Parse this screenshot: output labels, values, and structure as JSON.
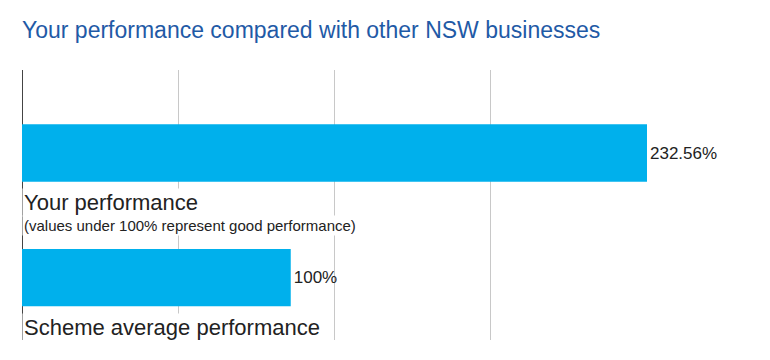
{
  "chart_data": {
    "type": "bar",
    "orientation": "horizontal",
    "title": "Your performance compared with other NSW businesses",
    "categories": [
      "Your performance",
      "Scheme average performance"
    ],
    "values": [
      232.56,
      100
    ],
    "value_labels": [
      "232.56%",
      "100%"
    ],
    "data_labels": true,
    "color": "#00b0ec",
    "xlim": [
      0,
      232.56
    ],
    "xticks": [
      0,
      58.14,
      116.28,
      174.42,
      232.56
    ],
    "grid": true,
    "tick_labels": false,
    "annotations": [
      {
        "text": "(values under 100% represent good performance)",
        "category": "Your performance"
      }
    ]
  }
}
